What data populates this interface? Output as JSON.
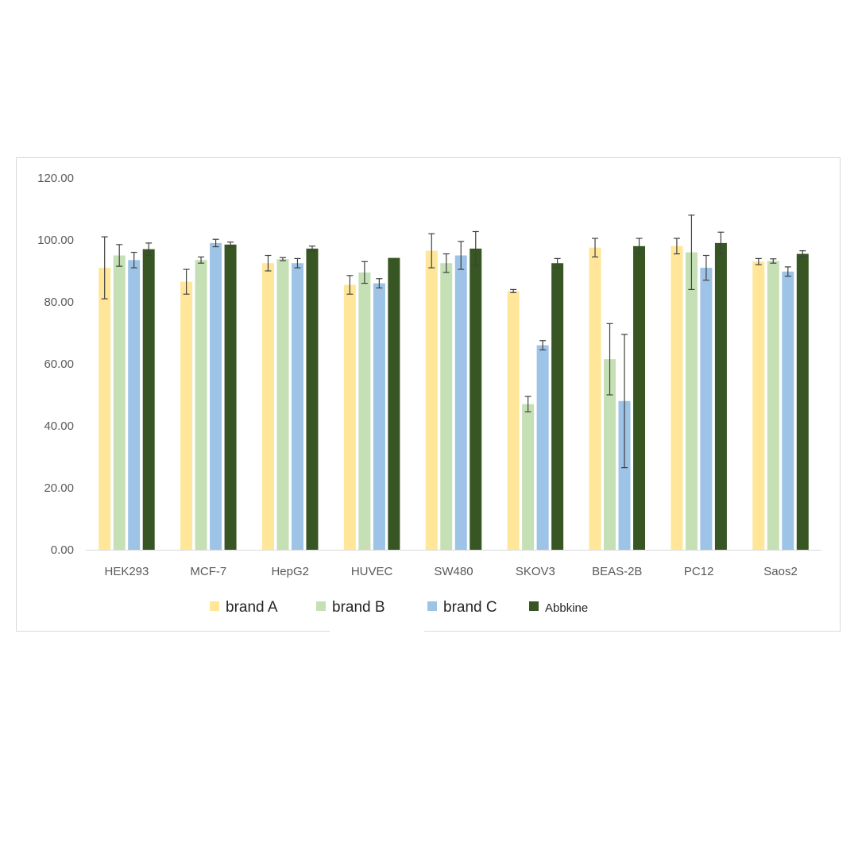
{
  "chart_data": {
    "type": "bar",
    "title": "",
    "xlabel": "",
    "ylabel": "",
    "ylim": [
      0,
      120
    ],
    "y_ticks": [
      0,
      20,
      40,
      60,
      80,
      100,
      120
    ],
    "y_tick_labels": [
      "0.00",
      "20.00",
      "40.00",
      "60.00",
      "80.00",
      "100.00",
      "120.00"
    ],
    "grid": false,
    "legend_position": "bottom",
    "categories": [
      "HEK293",
      "MCF-7",
      "HepG2",
      "HUVEC",
      "SW480",
      "SKOV3",
      "BEAS-2B",
      "PC12",
      "Saos2"
    ],
    "series": [
      {
        "name": "brand A",
        "color": "#ffe699",
        "values": [
          91,
          86.5,
          92.5,
          85.5,
          96.5,
          83.5,
          97.5,
          98,
          93
        ],
        "errors": [
          10,
          4,
          2.5,
          3,
          5.5,
          0.5,
          3,
          2.5,
          1
        ]
      },
      {
        "name": "brand B",
        "color": "#c5e0b4",
        "values": [
          95,
          93.5,
          93.8,
          89.5,
          92.5,
          47,
          61.5,
          96,
          93.2
        ],
        "errors": [
          3.5,
          1,
          0.5,
          3.5,
          3,
          2.5,
          11.5,
          12,
          0.7
        ]
      },
      {
        "name": "brand C",
        "color": "#9dc3e6",
        "values": [
          93.5,
          99,
          92.5,
          86,
          95,
          66,
          48,
          91,
          89.8
        ],
        "errors": [
          2.5,
          1.2,
          1.5,
          1.5,
          4.5,
          1.5,
          21.5,
          4,
          1.5
        ]
      },
      {
        "name": "Abbkine",
        "color": "#375623",
        "values": [
          97,
          98.5,
          97.2,
          94.2,
          97.2,
          92.5,
          98,
          99,
          95.5
        ],
        "errors": [
          2,
          0.8,
          0.8,
          0,
          5.5,
          1.5,
          2.5,
          3.5,
          1
        ]
      }
    ]
  }
}
